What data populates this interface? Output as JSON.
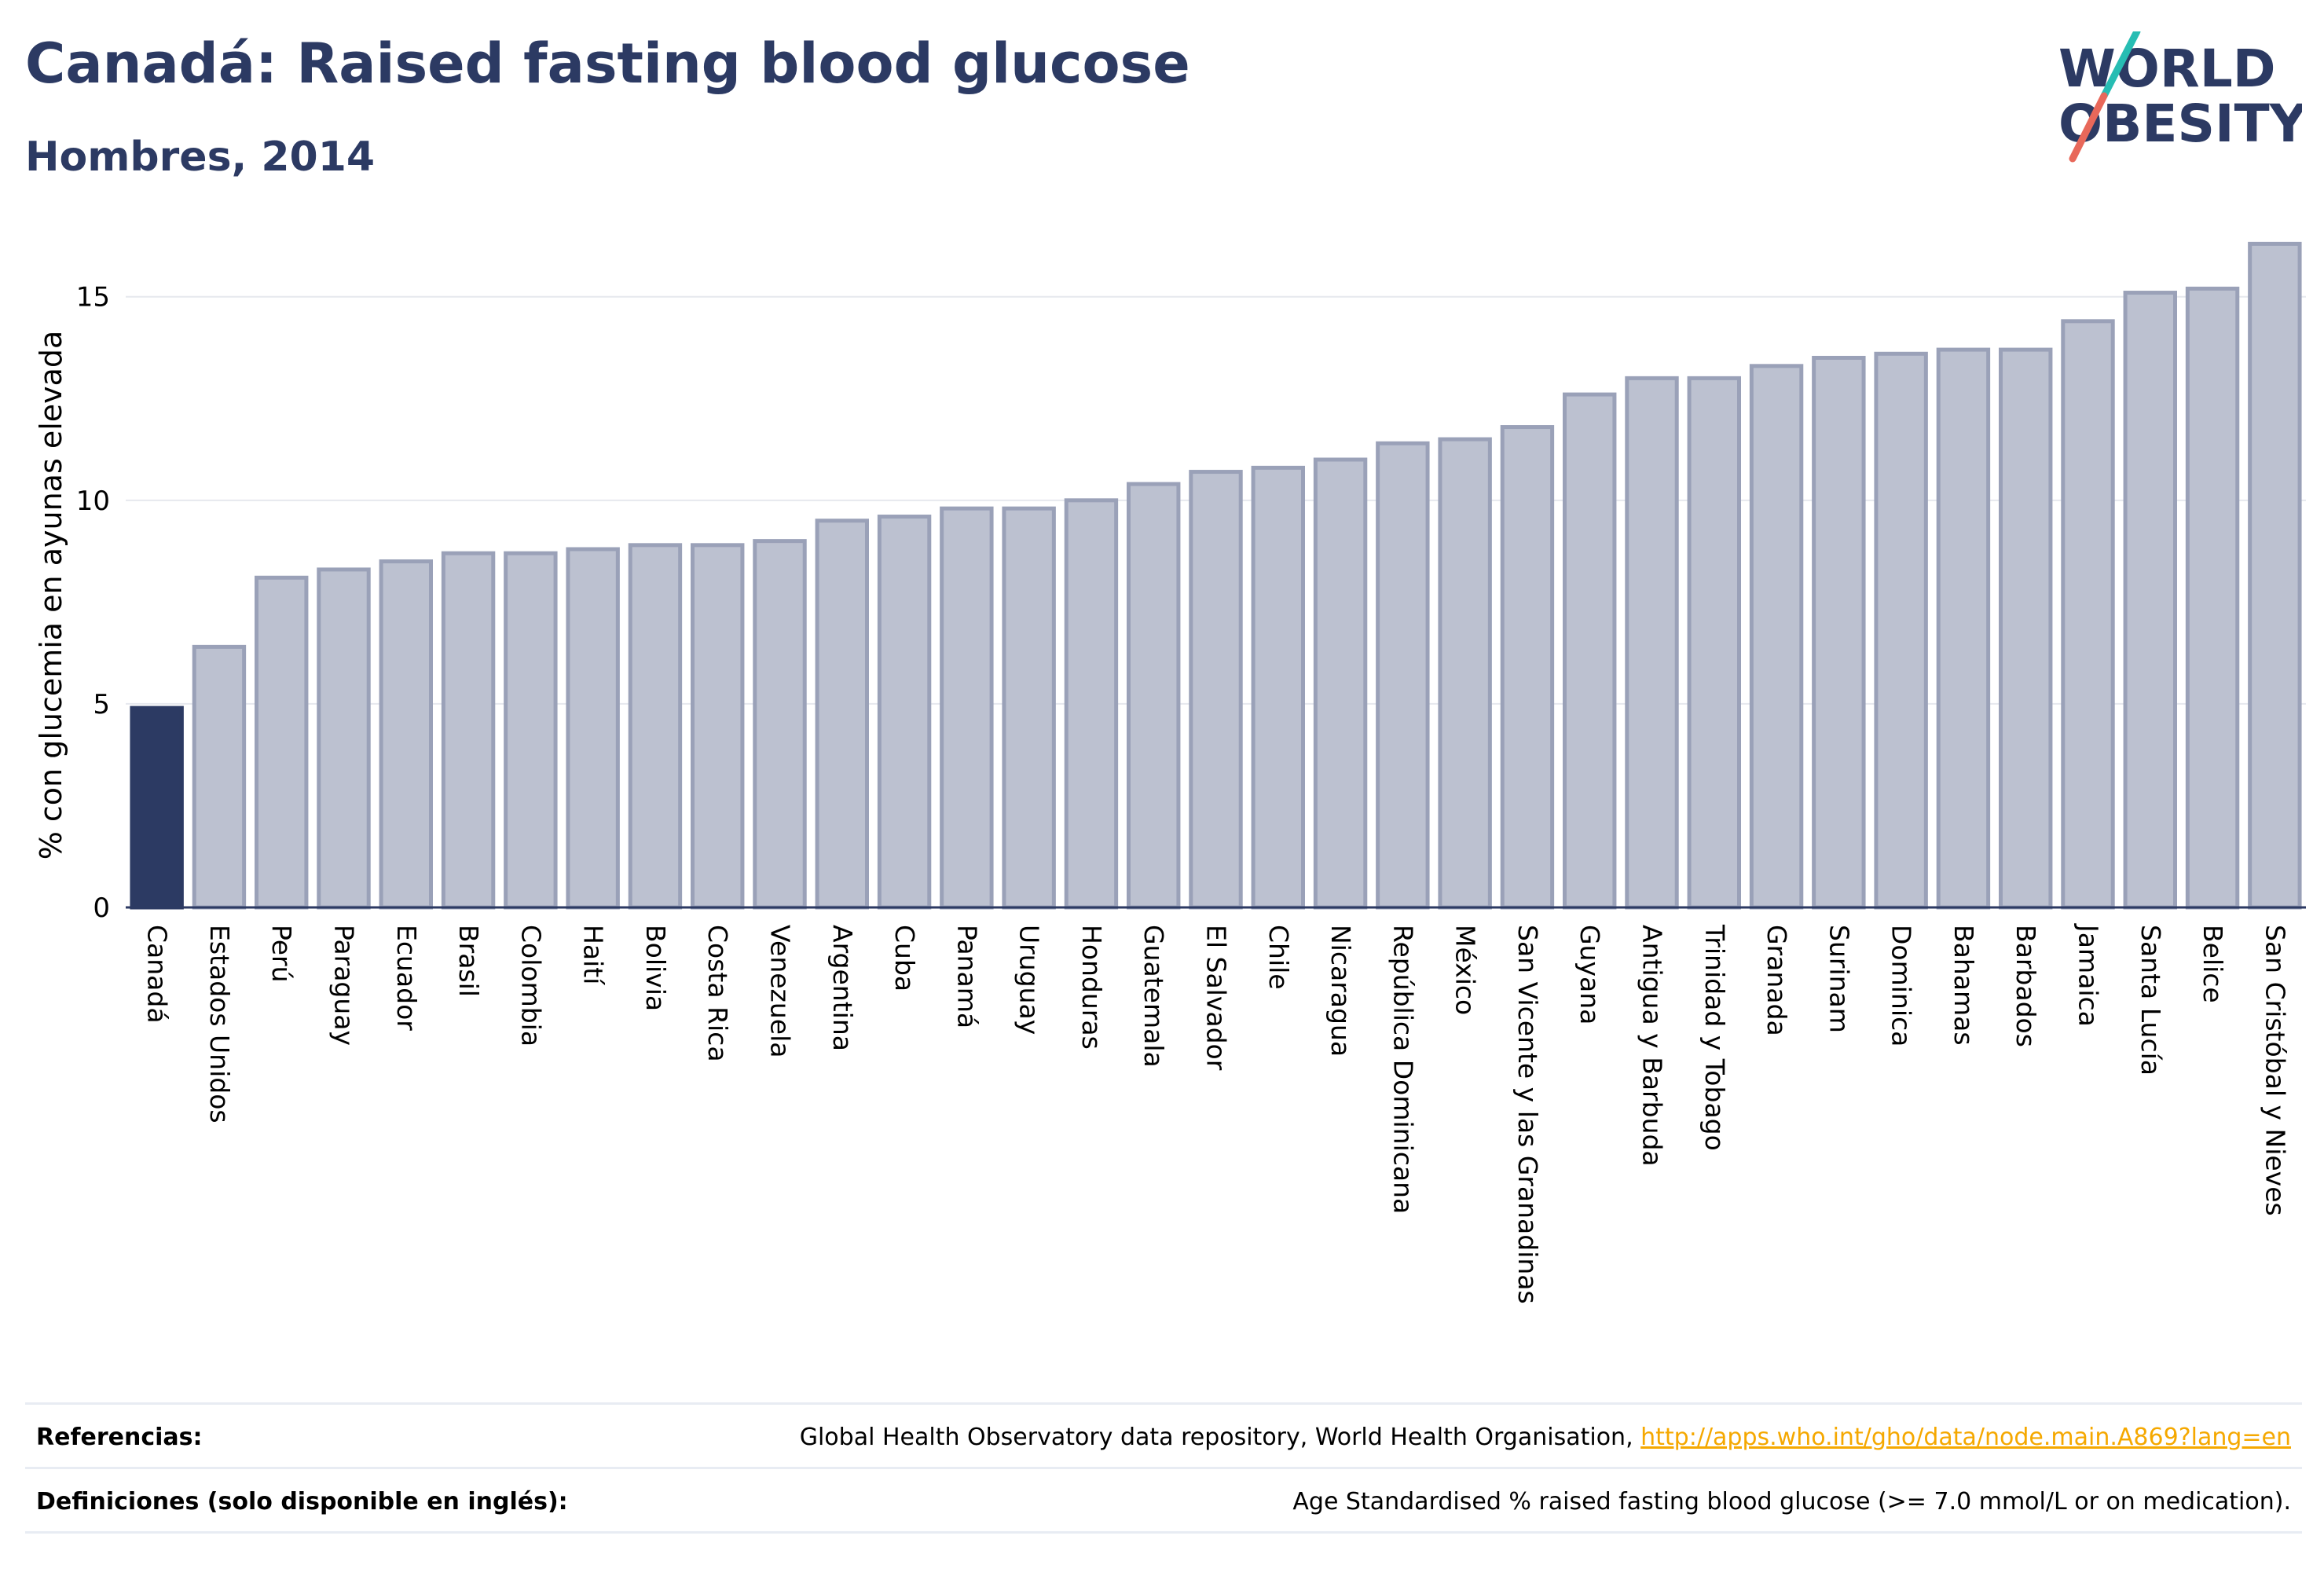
{
  "header": {
    "title": "Canadá: Raised fasting blood glucose",
    "subtitle": "Hombres, 2014",
    "logo_line1": "WORLD",
    "logo_line2": "OBESITY"
  },
  "colors": {
    "highlight": "#2c3a63",
    "bar_fill": "#bcc1d0",
    "bar_stroke": "#9aa1b8",
    "grid": "#e6e8ee",
    "link": "#f5a800",
    "logo_teal": "#27bdb3",
    "logo_coral": "#e8685a"
  },
  "chart_data": {
    "type": "bar",
    "title": "Canadá: Raised fasting blood glucose",
    "subtitle": "Hombres, 2014",
    "ylabel": "% con glucemia en ayunas elevada",
    "xlabel": "",
    "ylim": [
      0,
      16.5
    ],
    "yticks": [
      0,
      5,
      10,
      15
    ],
    "grid": true,
    "highlight_category": "Canadá",
    "categories": [
      "Canadá",
      "Estados Unidos",
      "Perú",
      "Paraguay",
      "Ecuador",
      "Brasil",
      "Colombia",
      "Haití",
      "Bolivia",
      "Costa Rica",
      "Venezuela",
      "Argentina",
      "Cuba",
      "Panamá",
      "Uruguay",
      "Honduras",
      "Guatemala",
      "El Salvador",
      "Chile",
      "Nicaragua",
      "República Dominicana",
      "México",
      "San Vicente y las Granadinas",
      "Guyana",
      "Antigua y Barbuda",
      "Trinidad y Tobago",
      "Granada",
      "Surinam",
      "Dominica",
      "Bahamas",
      "Barbados",
      "Jamaica",
      "Santa Lucía",
      "Belice",
      "San Cristóbal y Nieves"
    ],
    "values": [
      4.9,
      6.4,
      8.1,
      8.3,
      8.5,
      8.7,
      8.7,
      8.8,
      8.9,
      8.9,
      9.0,
      9.5,
      9.6,
      9.8,
      9.8,
      10.0,
      10.4,
      10.7,
      10.8,
      11.0,
      11.4,
      11.5,
      11.8,
      12.6,
      13.0,
      13.0,
      13.3,
      13.5,
      13.6,
      13.7,
      13.7,
      14.4,
      15.1,
      15.2,
      16.3
    ]
  },
  "footer": {
    "references_label": "Referencias:",
    "references_text": "Global Health Observatory data repository, World Health Organisation, ",
    "references_link": "http://apps.who.int/gho/data/node.main.A869?lang=en",
    "definitions_label": "Definiciones (solo disponible en inglés):",
    "definitions_text": "Age Standardised % raised fasting blood glucose (>= 7.0 mmol/L or on medication)."
  }
}
